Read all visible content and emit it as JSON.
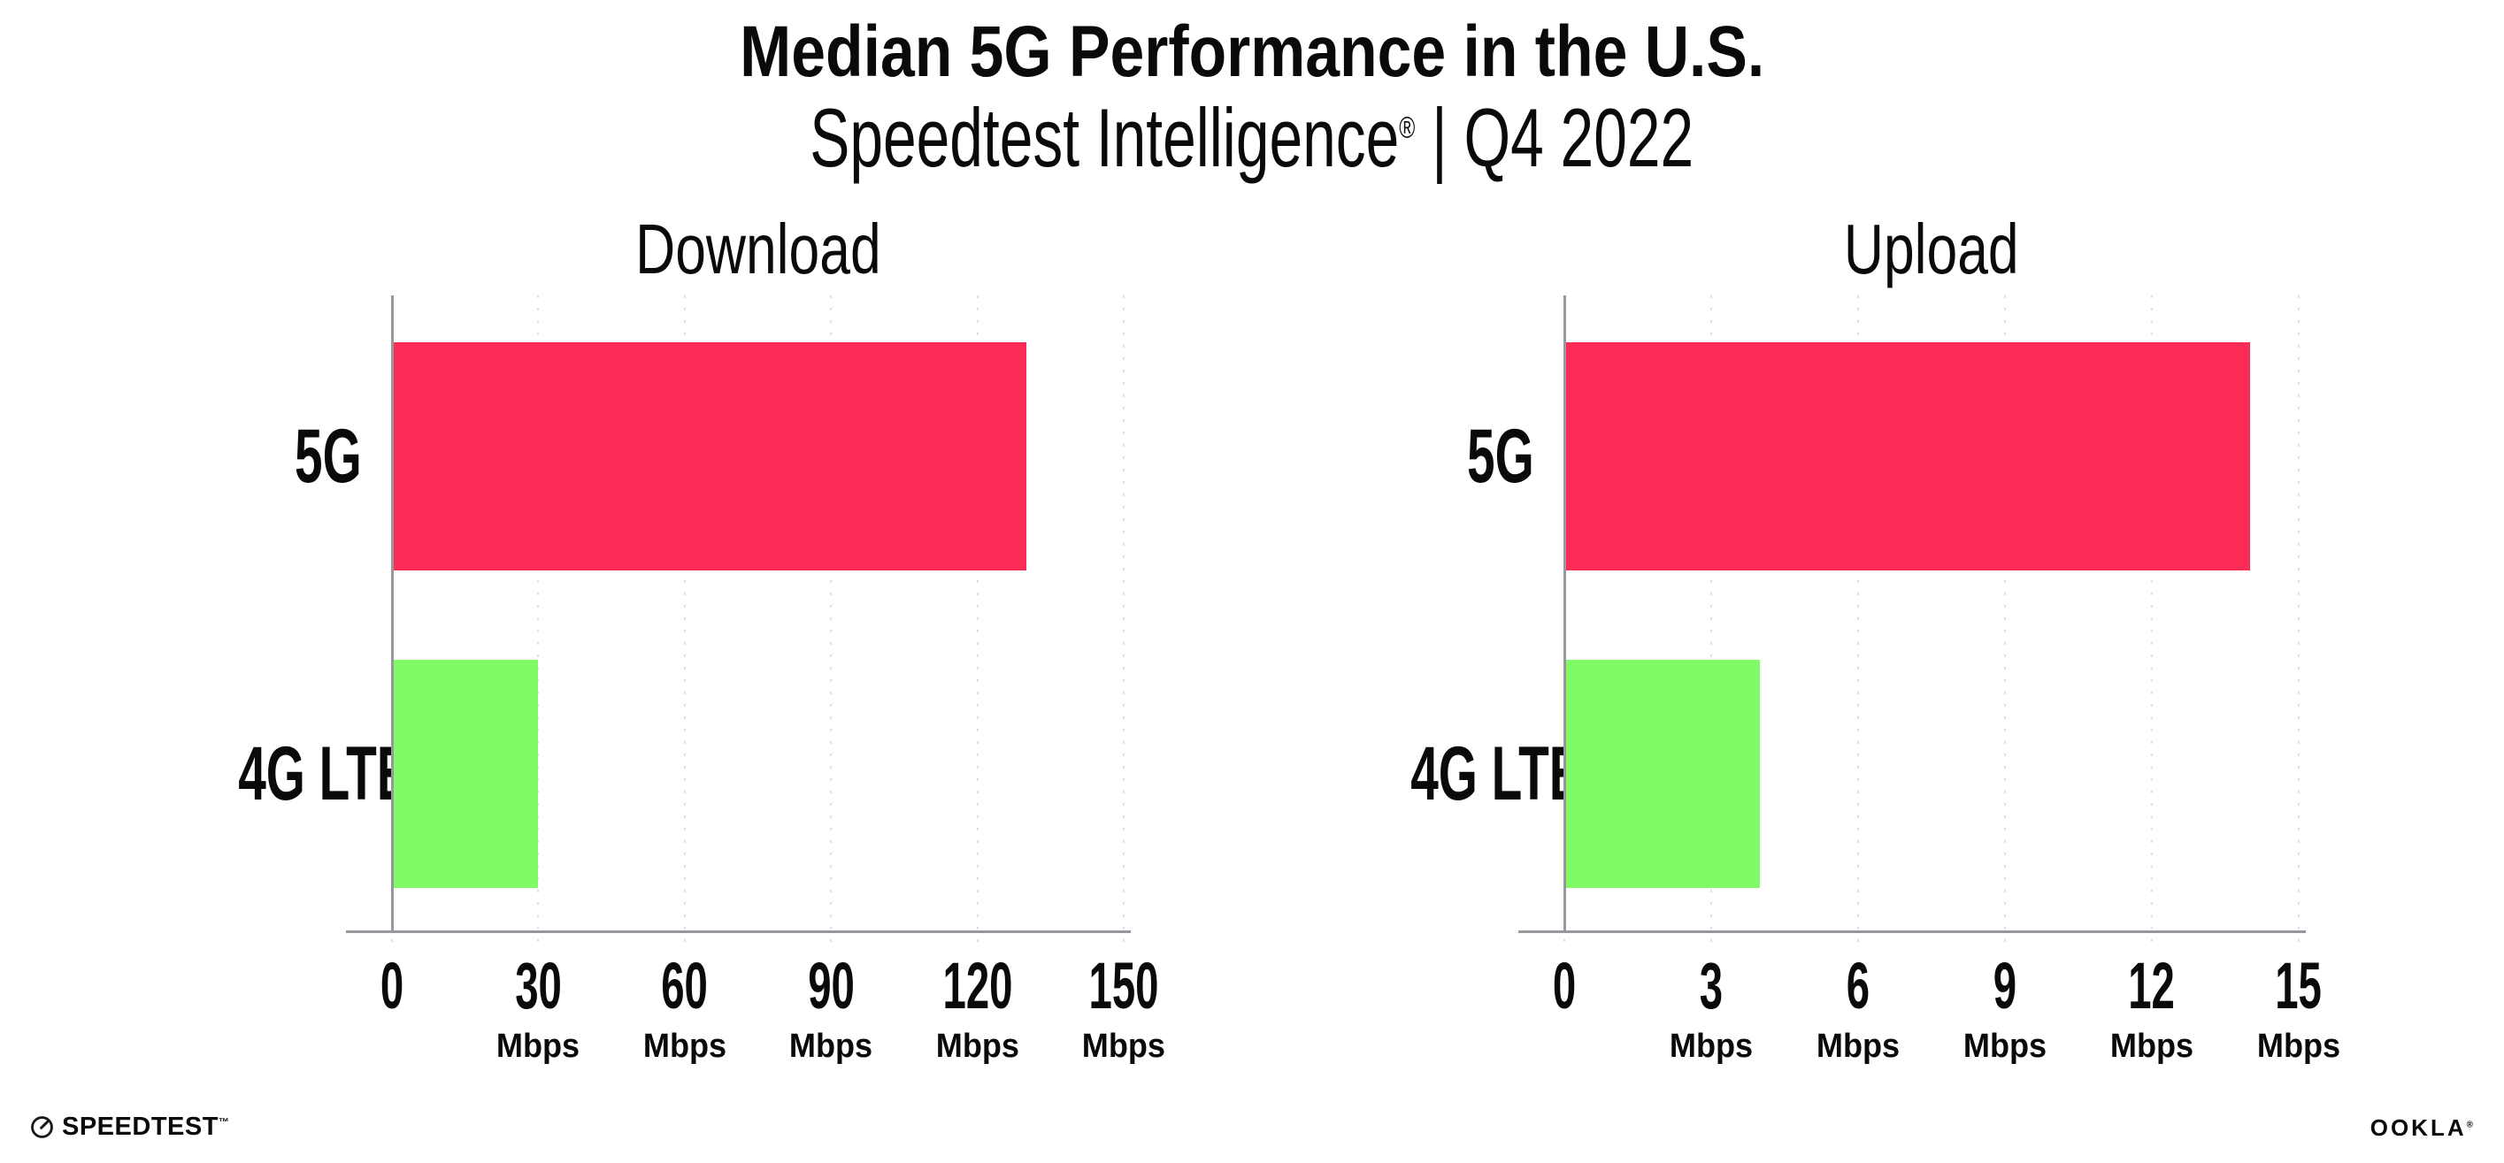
{
  "header": {
    "title": "Median 5G Performance in the U.S.",
    "subtitle": {
      "brand": "Speedtest Intelligence",
      "registered": "®",
      "rest": "| Q4 2022"
    }
  },
  "colors": {
    "bar_5g": "#fb2c56",
    "bar_4g_lte": "#80fa66",
    "axis": "#97979e",
    "gridline": "#dfdfea",
    "text": "#0a0a0a",
    "background": "#ffffff"
  },
  "chart_data": [
    {
      "type": "bar",
      "orientation": "horizontal",
      "title": "Download",
      "categories": [
        "5G",
        "4G LTE"
      ],
      "values": [
        130,
        30
      ],
      "unit": "Mbps",
      "xlim": [
        0,
        150
      ],
      "ticks": [
        0,
        30,
        60,
        90,
        120,
        150
      ],
      "tick_unit_label": "Mbps",
      "bar_colors": [
        "#fb2c56",
        "#80fa66"
      ],
      "grid": "dotted-vertical",
      "legend": "none"
    },
    {
      "type": "bar",
      "orientation": "horizontal",
      "title": "Upload",
      "categories": [
        "5G",
        "4G LTE"
      ],
      "values": [
        14,
        4
      ],
      "unit": "Mbps",
      "xlim": [
        0,
        15
      ],
      "ticks": [
        0,
        3,
        6,
        9,
        12,
        15
      ],
      "tick_unit_label": "Mbps",
      "bar_colors": [
        "#fb2c56",
        "#80fa66"
      ],
      "grid": "dotted-vertical",
      "legend": "none"
    }
  ],
  "footer": {
    "speedtest_label": "SPEEDTEST",
    "speedtest_mark": "™",
    "ookla_label": "OOKLA",
    "ookla_mark": "®"
  }
}
